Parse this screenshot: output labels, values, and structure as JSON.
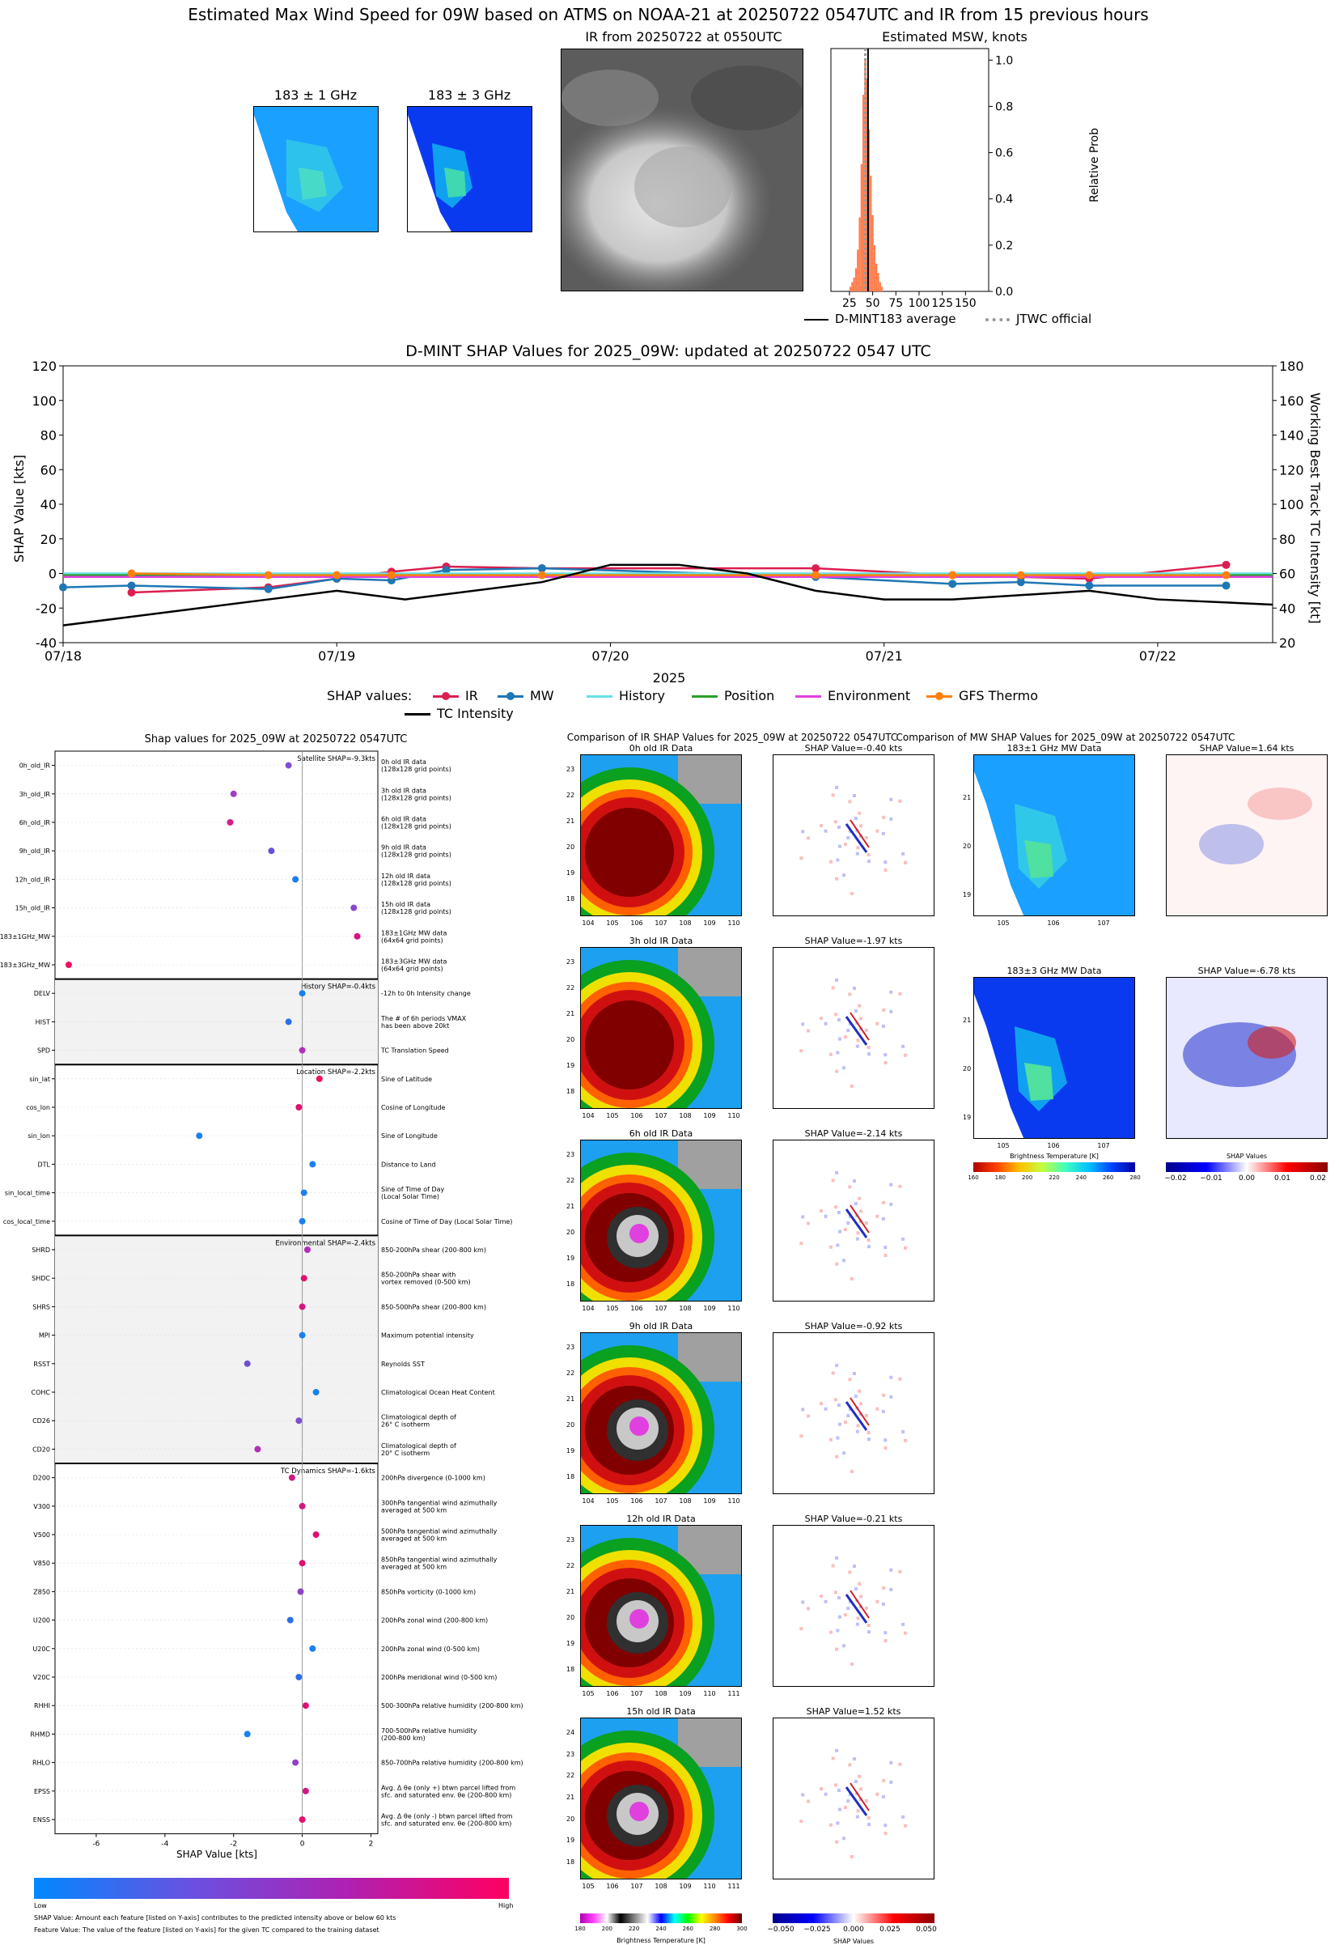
{
  "top": {
    "title": "Estimated Max Wind Speed for 09W based on ATMS on NOAA-21 at 20250722 0547UTC and IR from 15 previous hours",
    "mw1_title": "183 ± 1 GHz",
    "mw3_title": "183 ± 3 GHz",
    "ir_title": "IR from 20250722 at 0550UTC",
    "hist_title": "Estimated MSW, knots",
    "hist_ylabel": "Relative Prob",
    "hist_xticks": [
      "25",
      "50",
      "75",
      "100",
      "125",
      "150"
    ],
    "hist_yticks": [
      "0.0",
      "0.2",
      "0.4",
      "0.6",
      "0.8",
      "1.0"
    ],
    "legend": [
      "D-MINT183 average",
      "JTWC official"
    ]
  },
  "chart_data": [
    {
      "type": "bar",
      "title": "Estimated MSW, knots",
      "xlabel": "",
      "ylabel": "Relative Prob",
      "xlim": [
        5,
        175
      ],
      "ylim": [
        0,
        1.05
      ],
      "bins": [
        [
          26,
          0.02
        ],
        [
          28,
          0.04
        ],
        [
          30,
          0.06
        ],
        [
          32,
          0.1
        ],
        [
          34,
          0.18
        ],
        [
          36,
          0.32
        ],
        [
          38,
          0.55
        ],
        [
          40,
          0.85
        ],
        [
          42,
          1.0
        ],
        [
          44,
          0.92
        ],
        [
          46,
          0.7
        ],
        [
          48,
          0.5
        ],
        [
          50,
          0.33
        ],
        [
          52,
          0.2
        ],
        [
          54,
          0.12
        ],
        [
          56,
          0.08
        ],
        [
          58,
          0.04
        ],
        [
          60,
          0.02
        ]
      ],
      "average": 45,
      "jtwc": 42
    },
    {
      "type": "line",
      "title": "D-MINT SHAP Values for 2025_09W: updated at 20250722 0547 UTC",
      "xlabel": "2025",
      "ylabel": "SHAP Value [kts]",
      "y2label": "Working Best Track TC Intensity [kt]",
      "x_ticks": [
        "07/18",
        "07/19",
        "07/20",
        "07/21",
        "07/22"
      ],
      "ylim": [
        -40,
        120
      ],
      "y2lim": [
        20,
        180
      ],
      "yticks": [
        "-40",
        "-20",
        "0",
        "20",
        "40",
        "60",
        "80",
        "100",
        "120"
      ],
      "y2ticks": [
        "20",
        "40",
        "60",
        "80",
        "100",
        "120",
        "140",
        "160",
        "180"
      ],
      "legend_title": "SHAP values:",
      "series": [
        {
          "name": "IR",
          "color": "#dc1e50",
          "marker": true,
          "x": [
            0.25,
            0.75,
            1.0,
            1.2,
            1.4,
            1.75,
            2.75,
            3.25,
            3.5,
            3.75,
            4.25
          ],
          "y": [
            -11,
            -8,
            -3,
            1,
            4,
            3,
            3,
            -1,
            -2,
            -3,
            5
          ]
        },
        {
          "name": "MW",
          "color": "#1f77b4",
          "marker": true,
          "x": [
            0,
            0.25,
            0.75,
            1.0,
            1.2,
            1.4,
            1.75,
            2.75,
            3.25,
            3.5,
            3.75,
            4.25
          ],
          "y": [
            -8,
            -7,
            -9,
            -3,
            -4,
            2,
            3,
            -2,
            -6,
            -5,
            -7,
            -7
          ]
        },
        {
          "name": "History",
          "color": "#66e0e6",
          "marker": false,
          "x": [
            0,
            4.42
          ],
          "y": [
            0,
            0
          ]
        },
        {
          "name": "Position",
          "color": "#2ca02c",
          "marker": false,
          "x": [
            0,
            4.42
          ],
          "y": [
            -1,
            -1
          ]
        },
        {
          "name": "Environment",
          "color": "#e040e0",
          "marker": false,
          "x": [
            0,
            4.42
          ],
          "y": [
            -2,
            -2
          ]
        },
        {
          "name": "GFS Thermo",
          "color": "#ff7f0e",
          "marker": true,
          "x": [
            0.25,
            0.75,
            1.0,
            1.2,
            1.75,
            2.75,
            3.25,
            3.5,
            3.75,
            4.25
          ],
          "y": [
            0,
            -1,
            -1,
            -1,
            -1,
            -1,
            -1,
            -1,
            -1,
            -1
          ]
        },
        {
          "name": "TC Intensity",
          "color": "#000000",
          "marker": false,
          "axis": "right",
          "x": [
            0,
            0.5,
            0.75,
            1.0,
            1.25,
            1.75,
            2.0,
            2.25,
            2.5,
            2.75,
            3.0,
            3.25,
            3.75,
            4.0,
            4.42
          ],
          "y": [
            30,
            40,
            45,
            50,
            45,
            55,
            65,
            65,
            60,
            50,
            45,
            45,
            50,
            45,
            42
          ]
        }
      ]
    },
    {
      "type": "scatter",
      "title": "Shap values for 2025_09W at 20250722 0547UTC",
      "xlabel": "SHAP Value [kts]",
      "xlim": [
        -7.2,
        2.2
      ],
      "xticks": [
        "-6",
        "-4",
        "-2",
        "0",
        "2"
      ],
      "colorbar": {
        "low": "Low",
        "high": "High"
      },
      "notes": [
        "SHAP Value: Amount each feature [listed on Y-axis] contributes to the predicted intensity above or below 60 kts",
        "Feature Value: The value of the feature [listed on Y-axis] for the given TC compared to the training dataset"
      ],
      "groups": [
        {
          "label": "Satellite SHAP=-9.3kts",
          "shaded": false,
          "rows": [
            {
              "f": "0h_old_IR",
              "d": "0h old IR data\n(128x128 grid points)",
              "v": -0.4,
              "c": "#7f50d0"
            },
            {
              "f": "3h_old_IR",
              "d": "3h old IR data\n(128x128 grid points)",
              "v": -2.0,
              "c": "#a040c0"
            },
            {
              "f": "6h_old_IR",
              "d": "6h old IR data\n(128x128 grid points)",
              "v": -2.1,
              "c": "#d0208a"
            },
            {
              "f": "9h_old_IR",
              "d": "9h old IR data\n(128x128 grid points)",
              "v": -0.9,
              "c": "#6a50d8"
            },
            {
              "f": "12h_old_IR",
              "d": "12h old IR data\n(128x128 grid points)",
              "v": -0.2,
              "c": "#1a7ef0"
            },
            {
              "f": "15h_old_IR",
              "d": "15h old IR data\n(128x128 grid points)",
              "v": 1.5,
              "c": "#8a48d0"
            },
            {
              "f": "183±1GHz_MW",
              "d": "183±1GHz MW data\n(64x64 grid points)",
              "v": 1.6,
              "c": "#e0107a"
            },
            {
              "f": "183±3GHz_MW",
              "d": "183±3GHz MW data\n(64x64 grid points)",
              "v": -6.8,
              "c": "#f01060"
            }
          ]
        },
        {
          "label": "History SHAP=-0.4kts",
          "shaded": true,
          "rows": [
            {
              "f": "DELV",
              "d": "-12h to 0h Intensity change",
              "v": 0.0,
              "c": "#1a80f0"
            },
            {
              "f": "HIST",
              "d": "The # of 6h periods VMAX\nhas been above 20kt",
              "v": -0.4,
              "c": "#2a70e8"
            },
            {
              "f": "SPD",
              "d": "TC Translation Speed",
              "v": 0.0,
              "c": "#b030b8"
            }
          ]
        },
        {
          "label": "Location SHAP=-2.2kts",
          "shaded": false,
          "rows": [
            {
              "f": "sin_lat",
              "d": "Sine of Latitude",
              "v": 0.5,
              "c": "#f01060"
            },
            {
              "f": "cos_lon",
              "d": "Cosine of Longitude",
              "v": -0.1,
              "c": "#e01070"
            },
            {
              "f": "sin_lon",
              "d": "Sine of Longitude",
              "v": -3.0,
              "c": "#1a80f0"
            },
            {
              "f": "DTL",
              "d": "Distance to Land",
              "v": 0.3,
              "c": "#1a80f0"
            },
            {
              "f": "sin_local_time",
              "d": "Sine of Time of Day\n(Local Solar Time)",
              "v": 0.05,
              "c": "#1a80f0"
            },
            {
              "f": "cos_local_time",
              "d": "Cosine of Time of Day (Local Solar Time)",
              "v": 0.0,
              "c": "#1a80f0"
            }
          ]
        },
        {
          "label": "Environmental SHAP=-2.4kts",
          "shaded": true,
          "rows": [
            {
              "f": "SHRD",
              "d": "850-200hPa shear (200-800 km)",
              "v": 0.15,
              "c": "#b030b8"
            },
            {
              "f": "SHDC",
              "d": "850-200hPa shear with\nvortex removed (0-500 km)",
              "v": 0.05,
              "c": "#e01070"
            },
            {
              "f": "SHRS",
              "d": "850-500hPa shear (200-800 km)",
              "v": 0.0,
              "c": "#d01880"
            },
            {
              "f": "MPI",
              "d": "Maximum potential intensity",
              "v": 0.0,
              "c": "#1a80f0"
            },
            {
              "f": "RSST",
              "d": "Reynolds SST",
              "v": -1.6,
              "c": "#7050d0"
            },
            {
              "f": "COHC",
              "d": "Climatological Ocean Heat Content",
              "v": 0.4,
              "c": "#1a80f0"
            },
            {
              "f": "CD26",
              "d": "Climatological depth of\n26° C isotherm",
              "v": -0.1,
              "c": "#7a50d0"
            },
            {
              "f": "CD20",
              "d": "Climatological depth of\n20° C isotherm",
              "v": -1.3,
              "c": "#b030b8"
            }
          ]
        },
        {
          "label": "TC Dynamics SHAP=-1.6kts",
          "shaded": false,
          "rows": [
            {
              "f": "D200",
              "d": "200hPa divergence (0-1000 km)",
              "v": -0.3,
              "c": "#d01880"
            },
            {
              "f": "V300",
              "d": "300hPa tangential wind azimuthally\naveraged at 500 km",
              "v": 0.0,
              "c": "#d01880"
            },
            {
              "f": "V500",
              "d": "500hPa tangential wind azimuthally\naveraged at 500 km",
              "v": 0.4,
              "c": "#e01070"
            },
            {
              "f": "V850",
              "d": "850hPa tangential wind azimuthally\naveraged at 500 km",
              "v": 0.0,
              "c": "#e01070"
            },
            {
              "f": "Z850",
              "d": "850hPa vorticity (0-1000 km)",
              "v": -0.05,
              "c": "#9040c8"
            },
            {
              "f": "U200",
              "d": "200hPa zonal wind (200-800 km)",
              "v": -0.35,
              "c": "#2a70e8"
            },
            {
              "f": "U20C",
              "d": "200hPa zonal wind (0-500 km)",
              "v": 0.3,
              "c": "#1a80f0"
            },
            {
              "f": "V20C",
              "d": "200hPa meridional wind (0-500 km)",
              "v": -0.1,
              "c": "#2a70e8"
            },
            {
              "f": "RHHI",
              "d": "500-300hPa relative humidity (200-800 km)",
              "v": 0.1,
              "c": "#e01070"
            },
            {
              "f": "RHMD",
              "d": "700-500hPa relative humidity\n(200-800 km)",
              "v": -1.6,
              "c": "#1a80f0"
            },
            {
              "f": "RHLO",
              "d": "850-700hPa relative humidity (200-800 km)",
              "v": -0.2,
              "c": "#9040c8"
            },
            {
              "f": "EPSS",
              "d": "Avg. Δ θe (only +) btwn parcel lifted from\nsfc. and saturated env. θe (200-800 km)",
              "v": 0.1,
              "c": "#d01880"
            },
            {
              "f": "ENSS",
              "d": "Avg. Δ θe (only -) btwn parcel lifted from\nsfc. and saturated env. θe (200-800 km)",
              "v": 0.0,
              "c": "#e01070"
            }
          ]
        }
      ]
    }
  ],
  "ir": {
    "section_title": "Comparison of IR SHAP Values for 2025_09W at 20250722 0547UTC",
    "panels": [
      {
        "data_title": "0h old IR Data",
        "shap_title": "SHAP Value=-0.40 kts",
        "yticks": [
          "23",
          "22",
          "21",
          "20",
          "19",
          "18"
        ],
        "xticks": [
          "104",
          "105",
          "106",
          "107",
          "108",
          "109",
          "110"
        ],
        "eye": false
      },
      {
        "data_title": "3h old IR Data",
        "shap_title": "SHAP Value=-1.97 kts",
        "yticks": [
          "23",
          "22",
          "21",
          "20",
          "19",
          "18"
        ],
        "xticks": [
          "104",
          "105",
          "106",
          "107",
          "108",
          "109",
          "110"
        ],
        "eye": false
      },
      {
        "data_title": "6h old IR Data",
        "shap_title": "SHAP Value=-2.14 kts",
        "yticks": [
          "23",
          "22",
          "21",
          "20",
          "19",
          "18"
        ],
        "xticks": [
          "104",
          "105",
          "106",
          "107",
          "108",
          "109",
          "110"
        ],
        "eye": true
      },
      {
        "data_title": "9h old IR Data",
        "shap_title": "SHAP Value=-0.92 kts",
        "yticks": [
          "23",
          "22",
          "21",
          "20",
          "19",
          "18"
        ],
        "xticks": [
          "104",
          "105",
          "106",
          "107",
          "108",
          "109",
          "110"
        ],
        "eye": true
      },
      {
        "data_title": "12h old IR Data",
        "shap_title": "SHAP Value=-0.21 kts",
        "yticks": [
          "23",
          "22",
          "21",
          "20",
          "19",
          "18"
        ],
        "xticks": [
          "105",
          "106",
          "107",
          "108",
          "109",
          "110",
          "111"
        ],
        "eye": true
      },
      {
        "data_title": "15h old IR Data",
        "shap_title": "SHAP Value=1.52 kts",
        "yticks": [
          "24",
          "23",
          "22",
          "21",
          "20",
          "19",
          "18"
        ],
        "xticks": [
          "105",
          "106",
          "107",
          "108",
          "109",
          "110",
          "111"
        ],
        "eye": true
      }
    ],
    "cbar_label": "Brightness Temperature [K]",
    "cbar_ticks": [
      "180",
      "200",
      "220",
      "240",
      "260",
      "280",
      "300"
    ],
    "shap_cbar_label": "SHAP Values",
    "shap_cbar_ticks": [
      "−0.050",
      "−0.025",
      "0.000",
      "0.025",
      "0.050"
    ]
  },
  "mw": {
    "section_title": "Comparison of MW SHAP Values for 2025_09W at 20250722 0547UTC",
    "panels": [
      {
        "data_title": "183±1 GHz MW Data",
        "shap_title": "SHAP Value=1.64 kts"
      },
      {
        "data_title": "183±3 GHz MW Data",
        "shap_title": "SHAP Value=-6.78 kts"
      }
    ],
    "yticks": [
      "21",
      "20",
      "19"
    ],
    "xticks": [
      "105",
      "106",
      "107"
    ],
    "cbar_label": "Brightness Temperature [K]",
    "cbar_ticks": [
      "160",
      "180",
      "200",
      "220",
      "240",
      "260",
      "280"
    ],
    "shap_cbar_label": "SHAP Values",
    "shap_cbar_ticks": [
      "−0.02",
      "−0.01",
      "0.00",
      "0.01",
      "0.02"
    ]
  },
  "colors": {
    "ir_orange": "#ff7f50",
    "ir_line": "#dc1e50",
    "mw_line": "#1f77b4"
  }
}
